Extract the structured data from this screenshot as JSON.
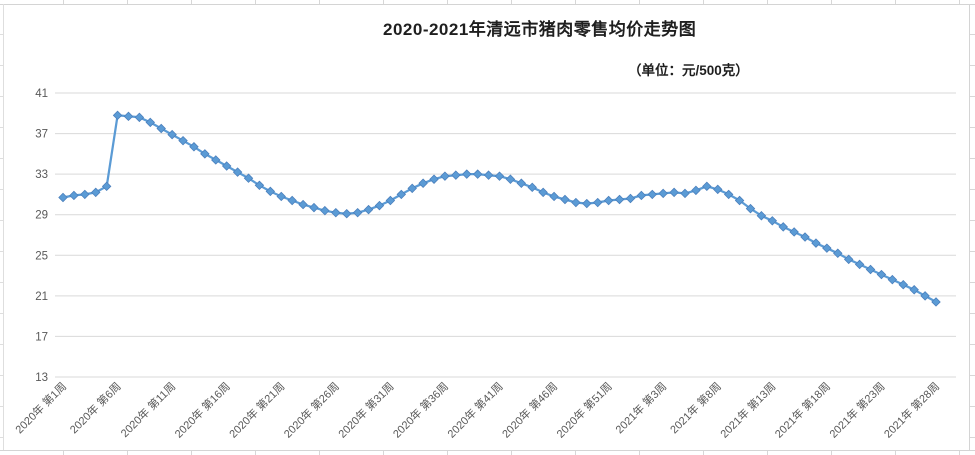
{
  "chart": {
    "title": "2020-2021年清远市猪肉零售均价走势图",
    "unit_label": "（单位：元/500克）",
    "colors": {
      "series": "#5B9BD5",
      "series_edge": "#4A7EBB",
      "gridline": "#D9D9D9",
      "axis_text": "#595959",
      "sheet_line": "#D4D4D4"
    }
  },
  "chart_data": {
    "type": "line",
    "title": "2020-2021年清远市猪肉零售均价走势图",
    "unit": "元/500克",
    "legend": "none",
    "grid": "horizontal",
    "marker": "diamond",
    "ylim": [
      13,
      41
    ],
    "y_ticks": [
      13,
      17,
      21,
      25,
      29,
      33,
      37,
      41
    ],
    "x_tick_indices": [
      0,
      5,
      10,
      15,
      20,
      25,
      30,
      35,
      40,
      45,
      50,
      55,
      60,
      65,
      70,
      75,
      80
    ],
    "x_tick_labels": [
      "2020年 第1周",
      "2020年 第6周",
      "2020年 第11周",
      "2020年 第16周",
      "2020年 第21周",
      "2020年 第26周",
      "2020年 第31周",
      "2020年 第36周",
      "2020年 第41周",
      "2020年 第46周",
      "2020年 第51周",
      "2021年 第3周",
      "2021年 第8周",
      "2021年 第13周",
      "2021年 第18周",
      "2021年 第23周",
      "2021年 第28周"
    ],
    "series": [
      {
        "name": "猪肉零售均价",
        "values": [
          30.7,
          30.9,
          31.0,
          31.2,
          31.8,
          38.8,
          38.7,
          38.6,
          38.1,
          37.5,
          36.9,
          36.3,
          35.7,
          35.0,
          34.4,
          33.8,
          33.2,
          32.6,
          31.9,
          31.3,
          30.8,
          30.4,
          30.0,
          29.7,
          29.4,
          29.2,
          29.1,
          29.2,
          29.5,
          29.9,
          30.4,
          31.0,
          31.6,
          32.1,
          32.5,
          32.8,
          32.9,
          33.0,
          33.0,
          32.9,
          32.8,
          32.5,
          32.1,
          31.7,
          31.2,
          30.8,
          30.5,
          30.2,
          30.1,
          30.2,
          30.4,
          30.5,
          30.6,
          30.9,
          31.0,
          31.1,
          31.2,
          31.1,
          31.4,
          31.8,
          31.5,
          31.0,
          30.4,
          29.6,
          28.9,
          28.4,
          27.8,
          27.3,
          26.8,
          26.2,
          25.7,
          25.2,
          24.6,
          24.1,
          23.6,
          23.1,
          22.6,
          22.1,
          21.6,
          21.0,
          20.4
        ]
      }
    ]
  }
}
